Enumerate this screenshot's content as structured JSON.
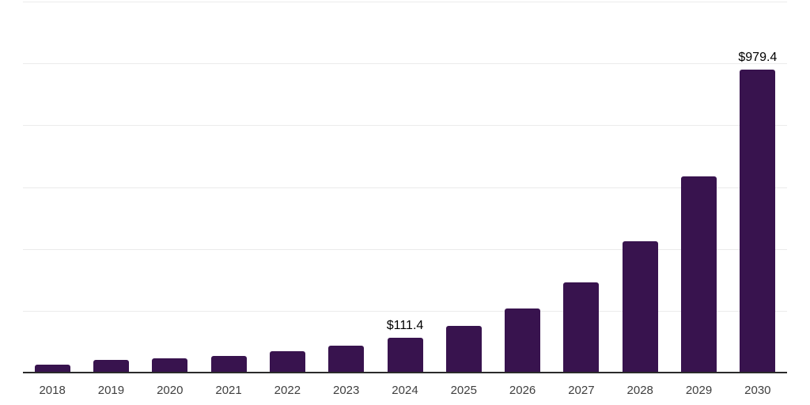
{
  "chart_data": {
    "type": "bar",
    "title": "",
    "xlabel": "",
    "ylabel": "",
    "categories": [
      "2018",
      "2019",
      "2020",
      "2021",
      "2022",
      "2023",
      "2024",
      "2025",
      "2026",
      "2027",
      "2028",
      "2029",
      "2030"
    ],
    "values": [
      25,
      41,
      46,
      55,
      69,
      88,
      111.4,
      151,
      207,
      292,
      426,
      634,
      979.4
    ],
    "data_labels": {
      "2024": "$111.4",
      "2030": "$979.4"
    },
    "ylim": [
      0,
      1200
    ],
    "grid_step": 200,
    "grid": "horizontal-only",
    "y_tick_labels_visible": false,
    "legend": "none",
    "colors": {
      "bar": "#38134e",
      "gridline": "#ebebeb",
      "axis_line": "#2b2b2b",
      "tick_label": "#3f3f3f",
      "value_label": "#000000",
      "background": "#ffffff"
    }
  }
}
